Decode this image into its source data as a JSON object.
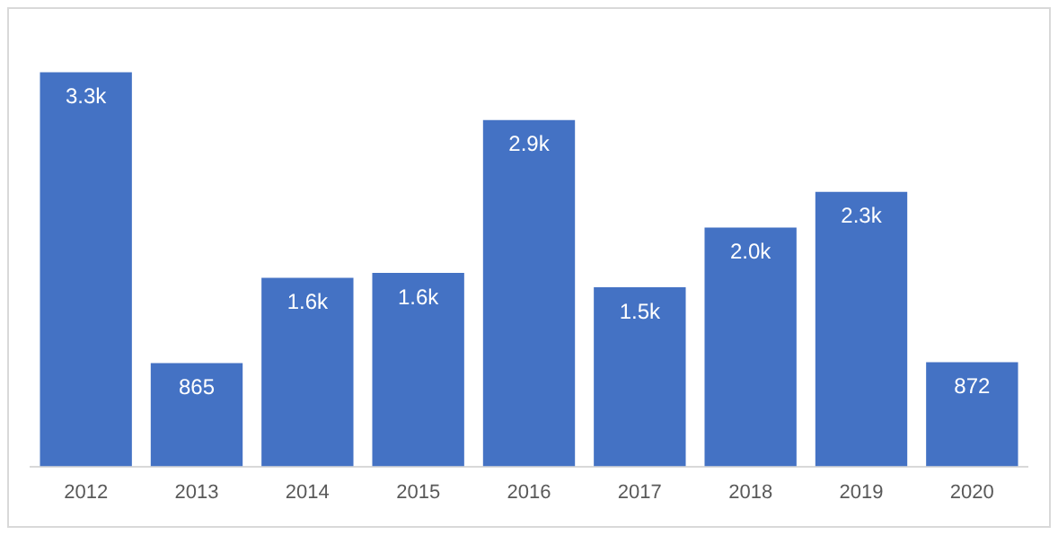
{
  "chart_data": {
    "type": "bar",
    "categories": [
      "2012",
      "2013",
      "2014",
      "2015",
      "2016",
      "2017",
      "2018",
      "2019",
      "2020"
    ],
    "values": [
      3300,
      865,
      1580,
      1620,
      2900,
      1500,
      2000,
      2300,
      872
    ],
    "value_labels": [
      "3.3k",
      "865",
      "1.6k",
      "1.6k",
      "2.9k",
      "1.5k",
      "2.0k",
      "2.3k",
      "872"
    ],
    "color": "#4472c4",
    "grid": false,
    "legend": false
  }
}
